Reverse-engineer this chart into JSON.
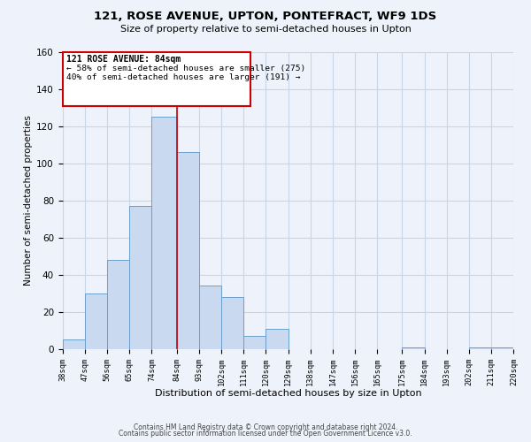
{
  "title": "121, ROSE AVENUE, UPTON, PONTEFRACT, WF9 1DS",
  "subtitle": "Size of property relative to semi-detached houses in Upton",
  "xlabel": "Distribution of semi-detached houses by size in Upton",
  "ylabel": "Number of semi-detached properties",
  "bin_edges": [
    38,
    47,
    56,
    65,
    74,
    84,
    93,
    102,
    111,
    120,
    129,
    138,
    147,
    156,
    165,
    175,
    184,
    193,
    202,
    211,
    220
  ],
  "bar_heights": [
    5,
    30,
    48,
    77,
    125,
    106,
    34,
    28,
    7,
    11,
    0,
    0,
    0,
    0,
    0,
    1,
    0,
    0,
    1,
    1
  ],
  "bar_color": "#c8d9f0",
  "bar_edge_color": "#6aa0cc",
  "property_line_x": 84,
  "property_line_color": "#cc0000",
  "ylim": [
    0,
    160
  ],
  "yticks": [
    0,
    20,
    40,
    60,
    80,
    100,
    120,
    140,
    160
  ],
  "annotation_title": "121 ROSE AVENUE: 84sqm",
  "annotation_line1": "← 58% of semi-detached houses are smaller (275)",
  "annotation_line2": "40% of semi-detached houses are larger (191) →",
  "annotation_box_color": "#cc0000",
  "tick_labels": [
    "38sqm",
    "47sqm",
    "56sqm",
    "65sqm",
    "74sqm",
    "84sqm",
    "93sqm",
    "102sqm",
    "111sqm",
    "120sqm",
    "129sqm",
    "138sqm",
    "147sqm",
    "156sqm",
    "165sqm",
    "175sqm",
    "184sqm",
    "193sqm",
    "202sqm",
    "211sqm",
    "220sqm"
  ],
  "footer_line1": "Contains HM Land Registry data © Crown copyright and database right 2024.",
  "footer_line2": "Contains public sector information licensed under the Open Government Licence v3.0.",
  "grid_color": "#c8d4e8",
  "bg_color": "#eef2fb"
}
